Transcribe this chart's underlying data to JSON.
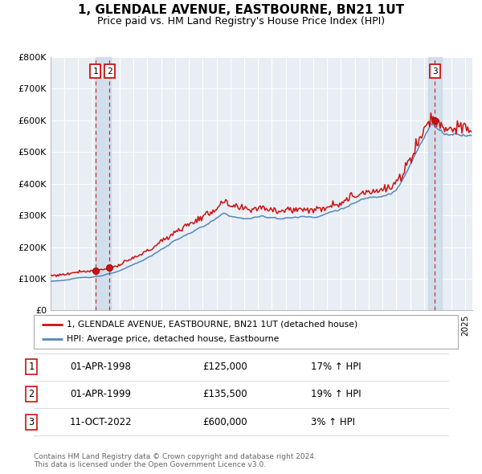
{
  "title": "1, GLENDALE AVENUE, EASTBOURNE, BN21 1UT",
  "subtitle": "Price paid vs. HM Land Registry's House Price Index (HPI)",
  "title_fontsize": 11,
  "subtitle_fontsize": 9,
  "ylim": [
    0,
    800000
  ],
  "yticks": [
    0,
    100000,
    200000,
    300000,
    400000,
    500000,
    600000,
    700000,
    800000
  ],
  "ytick_labels": [
    "£0",
    "£100K",
    "£200K",
    "£300K",
    "£400K",
    "£500K",
    "£600K",
    "£700K",
    "£800K"
  ],
  "hpi_color": "#5588bb",
  "property_color": "#cc1111",
  "background_color": "#ffffff",
  "plot_bg_color": "#e8eef4",
  "grid_color": "#ffffff",
  "legend_label_property": "1, GLENDALE AVENUE, EASTBOURNE, BN21 1UT (detached house)",
  "legend_label_hpi": "HPI: Average price, detached house, Eastbourne",
  "transactions": [
    {
      "num": 1,
      "date": "01-APR-1998",
      "price": 125000,
      "pct": "17%",
      "dir": "↑",
      "ref": "HPI",
      "year": 1998.25
    },
    {
      "num": 2,
      "date": "01-APR-1999",
      "price": 135500,
      "pct": "19%",
      "dir": "↑",
      "ref": "HPI",
      "year": 1999.25
    },
    {
      "num": 3,
      "date": "11-OCT-2022",
      "price": 600000,
      "pct": "3%",
      "dir": "↑",
      "ref": "HPI",
      "year": 2022.78
    }
  ],
  "footnote": "Contains HM Land Registry data © Crown copyright and database right 2024.\nThis data is licensed under the Open Government Licence v3.0.",
  "xmin": 1995.0,
  "xmax": 2025.5,
  "span1_x0": 1998.25,
  "span1_x1": 1999.35,
  "span2_x0": 2022.3,
  "span2_x1": 2023.3
}
